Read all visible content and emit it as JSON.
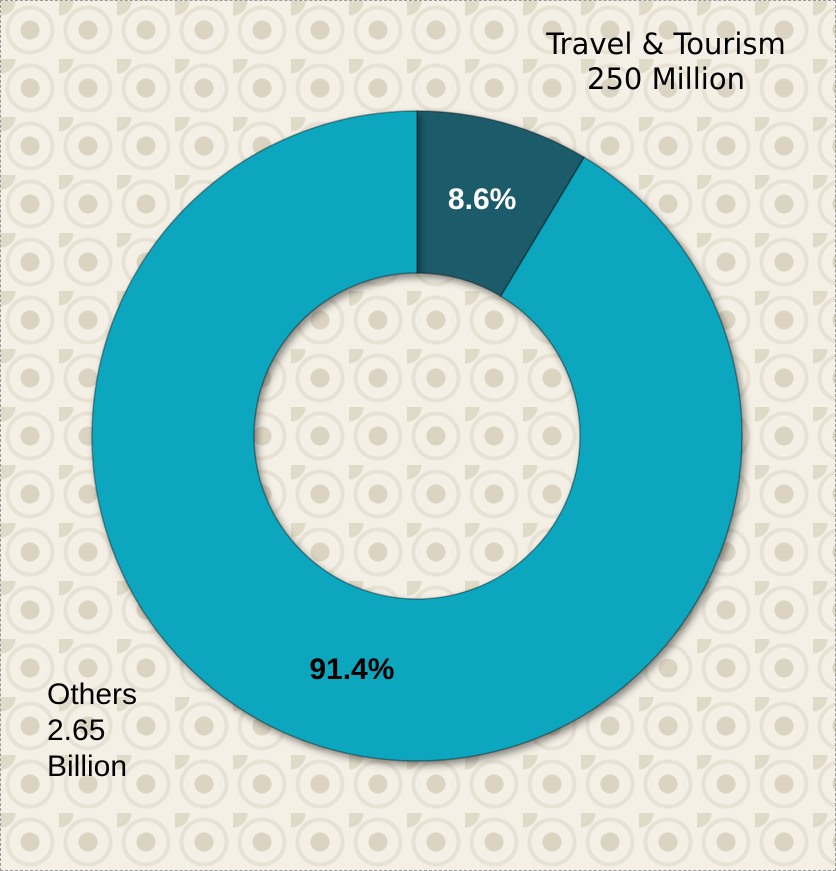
{
  "chart_data": {
    "type": "donut",
    "categories": [
      "Travel & Tourism",
      "Others"
    ],
    "annotations": [
      "250 Million",
      "2.65 Billion"
    ],
    "values": [
      8.6,
      91.4
    ],
    "value_labels": [
      "8.6%",
      "91.4%"
    ],
    "colors": [
      "#1f5c6b",
      "#0aa6bf"
    ],
    "value_label_colors": [
      "#ffffff",
      "#000000"
    ]
  }
}
